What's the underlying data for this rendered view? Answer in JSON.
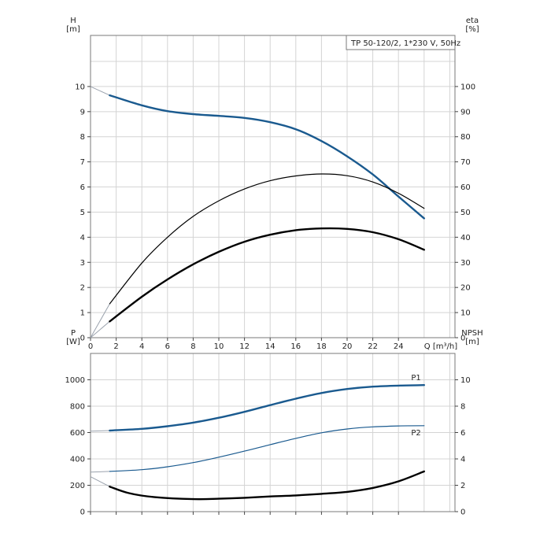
{
  "chart_data": [
    {
      "type": "line",
      "info_box": "TP 50-120/2, 1*230 V, 50Hz",
      "y_left_label": [
        "H",
        "[m]"
      ],
      "y_right_label": [
        "eta",
        "[%]"
      ],
      "x_label": "Q [m³/h]",
      "x_ticks": [
        0,
        2,
        4,
        6,
        8,
        10,
        12,
        14,
        16,
        18,
        20,
        22,
        24
      ],
      "y_left_ticks": [
        0,
        1,
        2,
        3,
        4,
        5,
        6,
        7,
        8,
        9,
        10
      ],
      "y_right_ticks": [
        0,
        10,
        20,
        30,
        40,
        50,
        60,
        70,
        80,
        90,
        100
      ],
      "xlim": [
        0,
        28
      ],
      "ylim": [
        0,
        11
      ],
      "grid": true,
      "series": [
        {
          "axis": "left",
          "color": "#1a5a8f",
          "weight": "heavy",
          "x": [
            1.5,
            4,
            6,
            8,
            10,
            12,
            14,
            16,
            18,
            20,
            22,
            24,
            26
          ],
          "y": [
            9.65,
            9.25,
            9.02,
            8.9,
            8.83,
            8.75,
            8.58,
            8.3,
            7.83,
            7.22,
            6.5,
            5.62,
            4.75
          ]
        },
        {
          "axis": "left",
          "color": "#000000",
          "weight": "thin",
          "x": [
            1.5,
            4,
            6,
            8,
            10,
            12,
            14,
            16,
            18,
            20,
            22,
            24,
            26
          ],
          "y": [
            1.35,
            2.97,
            4.0,
            4.83,
            5.45,
            5.92,
            6.25,
            6.44,
            6.52,
            6.45,
            6.2,
            5.75,
            5.15
          ]
        },
        {
          "axis": "left",
          "color": "#000000",
          "weight": "heavy",
          "x": [
            1.5,
            4,
            6,
            8,
            10,
            12,
            14,
            16,
            18,
            20,
            22,
            24,
            26
          ],
          "y": [
            0.65,
            1.63,
            2.32,
            2.92,
            3.42,
            3.82,
            4.1,
            4.28,
            4.35,
            4.33,
            4.2,
            3.92,
            3.5
          ]
        }
      ]
    },
    {
      "type": "line",
      "y_left_label": [
        "P",
        "[W]"
      ],
      "y_right_label": [
        "NPSH",
        "[m]"
      ],
      "x_ticks": [
        0,
        2,
        4,
        6,
        8,
        10,
        12,
        14,
        16,
        18,
        20,
        22,
        24
      ],
      "y_left_ticks": [
        0,
        200,
        400,
        600,
        800,
        1000
      ],
      "y_right_ticks": [
        0,
        2,
        4,
        6,
        8,
        10
      ],
      "xlim": [
        0,
        28
      ],
      "ylim": [
        0,
        1200
      ],
      "grid": true,
      "series": [
        {
          "name": "P1",
          "axis": "left",
          "color": "#1a5a8f",
          "weight": "heavy",
          "x": [
            1.5,
            4,
            6,
            8,
            10,
            12,
            14,
            16,
            18,
            20,
            22,
            24,
            26
          ],
          "y": [
            615,
            628,
            648,
            675,
            712,
            757,
            808,
            857,
            900,
            930,
            948,
            956,
            960
          ]
        },
        {
          "name": "P2",
          "axis": "left",
          "color": "#1a5a8f",
          "weight": "thin",
          "x": [
            1.5,
            4,
            6,
            8,
            10,
            12,
            14,
            16,
            18,
            20,
            22,
            24,
            26
          ],
          "y": [
            305,
            318,
            340,
            372,
            413,
            459,
            508,
            556,
            598,
            627,
            643,
            650,
            652
          ]
        },
        {
          "axis": "right",
          "color": "#000000",
          "weight": "heavy",
          "x": [
            1.5,
            3,
            5,
            8,
            10,
            12,
            14,
            16,
            18,
            20,
            22,
            24,
            26
          ],
          "y": [
            1.9,
            1.4,
            1.1,
            0.95,
            0.98,
            1.05,
            1.15,
            1.23,
            1.35,
            1.5,
            1.8,
            2.3,
            3.05
          ]
        }
      ]
    }
  ]
}
